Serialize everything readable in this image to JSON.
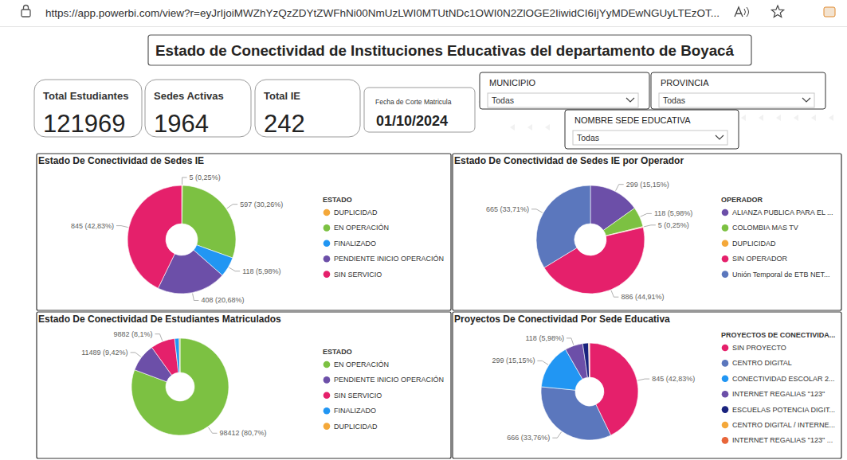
{
  "browser": {
    "url": "https://app.powerbi.com/view?r=eyJrIjoiMWZhYzQzZDYtZWFhNi00NmUzLWI0MTUtNDc1OWI0N2ZlOGE2IiwidCI6IjYyMDEwNGUyLTEzOT..."
  },
  "header": {
    "title": "Estado de Conectividad de Instituciones Educativas del departamento de Boyacá"
  },
  "cards": [
    {
      "label": "Total Estudiantes",
      "value": 121969
    },
    {
      "label": "Sedes Activas",
      "value": 1964
    },
    {
      "label": "Total IE",
      "value": 242
    },
    {
      "label": "Fecha de Corte Matricula",
      "value": "01/10/2024"
    }
  ],
  "filters": [
    {
      "label": "MUNICIPIO",
      "value": "Todas"
    },
    {
      "label": "PROVINCIA",
      "value": "Todas"
    },
    {
      "label": "NOMBRE SEDE EDUCATIVA",
      "value": "Todas"
    }
  ],
  "chart_data": [
    {
      "type": "pie",
      "title": "Estado De Conectividad de Sedes IE",
      "legend_title": "ESTADO",
      "categories": [
        "DUPLICIDAD",
        "EN OPERACIÓN",
        "FINALIZADO",
        "PENDIENTE INICIO OPERACIÓN",
        "SIN SERVICIO"
      ],
      "values": [
        5,
        597,
        118,
        408,
        845
      ],
      "value_labels": [
        "5 (0,25%)",
        "597 (30,26%)",
        "118 (5,98%)",
        "408 (20,68%)",
        "845 (42,83%)"
      ],
      "colors": [
        "#f4a83a",
        "#7cc142",
        "#2196f3",
        "#6c4fa8",
        "#e5206b"
      ],
      "data_labels": true,
      "legend": "right"
    },
    {
      "type": "pie",
      "title": "Estado De Conectividad de Sedes IE por Operador",
      "legend_title": "OPERADOR",
      "categories": [
        "ALIANZA PUBLICA PARA EL ...",
        "COLOMBIA MAS TV",
        "DUPLICIDAD",
        "SIN OPERADOR",
        "Unión Temporal de ETB NET..."
      ],
      "values": [
        299,
        118,
        5,
        886,
        665
      ],
      "value_labels": [
        "299 (15,15%)",
        "118 (5,98%)",
        "5 (0,25%)",
        "886 (44,91%)",
        "665 (33,71%)"
      ],
      "colors": [
        "#6c4fa8",
        "#7cc142",
        "#f4a83a",
        "#e5206b",
        "#5b77bd"
      ],
      "data_labels": true,
      "legend": "right"
    },
    {
      "type": "pie",
      "title": "Estado De Conectividad De Estudiantes Matriculados",
      "legend_title": "ESTADO",
      "categories": [
        "EN OPERACIÓN",
        "PENDIENTE INICIO OPERACIÓN",
        "SIN SERVICIO",
        "FINALIZADO",
        "DUPLICIDAD"
      ],
      "values": [
        98412,
        11489,
        9882,
        1830,
        356
      ],
      "value_labels": [
        "98412 (80,7%)",
        "11489 (9,42%)",
        "9882 (8,1%)",
        null,
        null
      ],
      "colors": [
        "#7cc142",
        "#6c4fa8",
        "#e5206b",
        "#2196f3",
        "#f4a83a"
      ],
      "data_labels": true,
      "legend": "right"
    },
    {
      "type": "pie",
      "title": "Proyectos De Conectividad Por Sede Educativa",
      "legend_title": "PROYECTOS DE CONECTIVIDA...",
      "categories": [
        "SIN PROYECTO",
        "CENTRO DIGITAL",
        "CONECTIVIDAD ESCOLAR 2...",
        "INTERNET REGALIAS \"123\"",
        "ESCUELAS POTENCIA DIGIT...",
        "CENTRO DIGITAL / INTERNE...",
        "INTERNET REGALIAS \"123\" ..."
      ],
      "values": [
        845,
        666,
        299,
        118,
        38,
        4,
        3
      ],
      "value_labels": [
        "845 (42,83%)",
        "666 (33,76%)",
        "299 (15,15%)",
        "118 (5,98%)",
        null,
        null,
        null
      ],
      "colors": [
        "#e5206b",
        "#5b77bd",
        "#2196f3",
        "#6c4fa8",
        "#1a237e",
        "#f4a83a",
        "#e8663a"
      ],
      "data_labels": true,
      "legend": "right"
    }
  ]
}
